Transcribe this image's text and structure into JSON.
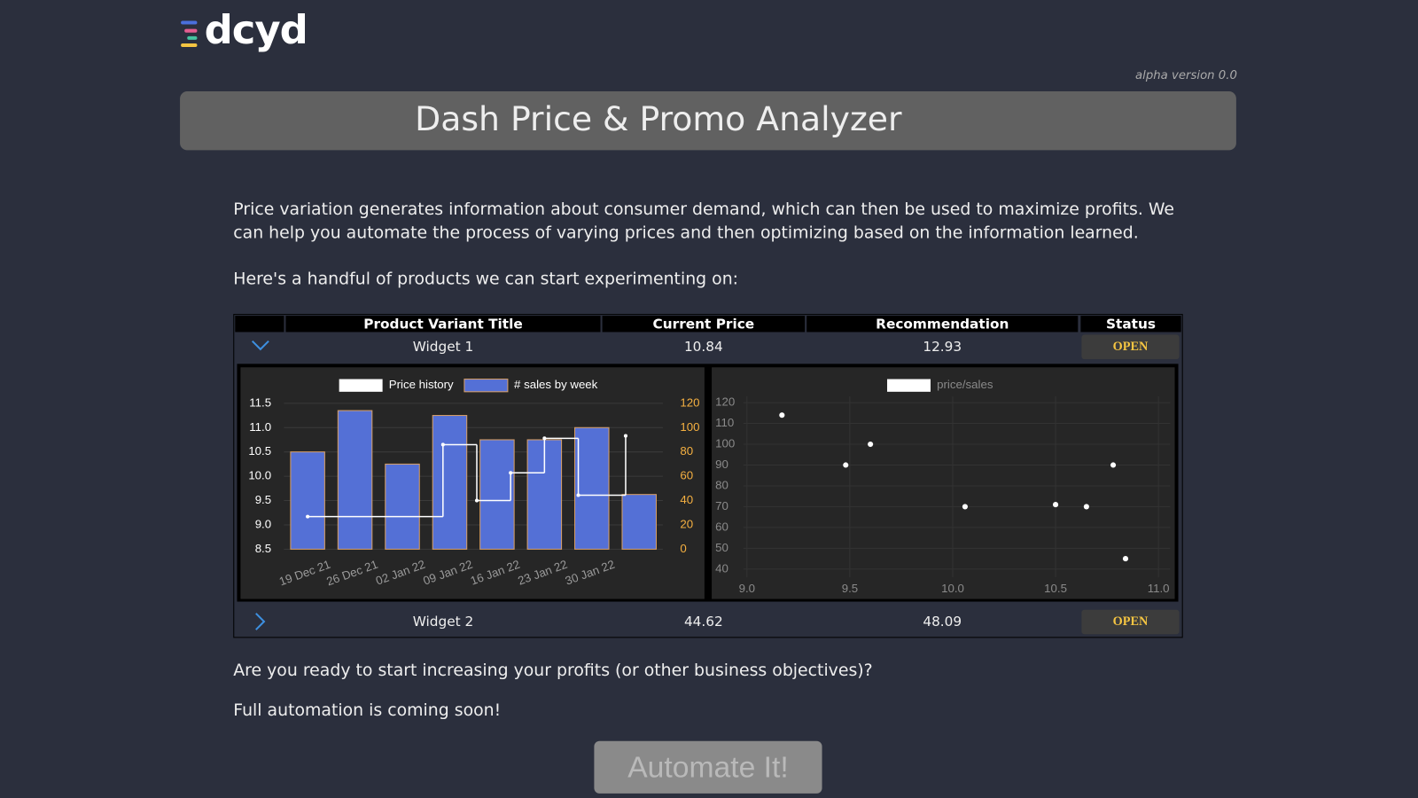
{
  "logo": {
    "text": "dcyd"
  },
  "version": "alpha version 0.0",
  "header": {
    "title": "Dash Price & Promo Analyzer"
  },
  "intro": [
    "Price variation generates information about consumer demand, which can then be used to maximize profits. We can help you automate the process of varying prices and then optimizing based on the information learned.",
    "Here's a handful of products we can start experimenting on:"
  ],
  "table": {
    "columns": [
      "Product Variant Title",
      "Current Price",
      "Recommendation",
      "Status"
    ],
    "rows": [
      {
        "title": "Widget 1",
        "current_price": 10.84,
        "recommendation": 12.93,
        "status": "OPEN"
      },
      {
        "title": "Widget 2",
        "current_price": 44.62,
        "recommendation": 48.09,
        "status": "OPEN"
      }
    ]
  },
  "chart_data": [
    {
      "type": "combo",
      "categories": [
        "19 Dec 21",
        "26 Dec 21",
        "02 Jan 22",
        "09 Jan 22",
        "16 Jan 22",
        "23 Jan 22",
        "30 Jan 22",
        null
      ],
      "series": [
        {
          "name": "Price history",
          "kind": "step",
          "color": "#ffffff",
          "x": [
            "2021-12-19",
            "2022-01-08",
            "2022-01-13",
            "2022-01-18",
            "2022-01-23",
            "2022-01-28",
            "2022-02-04"
          ],
          "values": [
            9.17,
            10.65,
            9.5,
            10.07,
            10.78,
            9.61,
            10.83
          ]
        },
        {
          "name": "# sales by week",
          "kind": "bar",
          "axis": "y2",
          "color": "#5470d6",
          "edge_color": "#d9a066",
          "values": [
            80,
            114,
            70,
            110,
            90,
            90,
            100,
            45
          ]
        }
      ],
      "ylim": [
        8.5,
        11.7
      ],
      "yticks": [
        8.5,
        {
          "value": 9,
          "label": "9.0"
        },
        9.5,
        {
          "value": 10,
          "label": "10.0"
        },
        10.5,
        {
          "value": 11,
          "label": "11.0"
        },
        11.5
      ],
      "y2lim": [
        0,
        128
      ],
      "y2ticks": [
        0,
        20,
        40,
        60,
        80,
        100,
        120
      ],
      "y2_color": "#f5b041",
      "grid": true,
      "legend": "top"
    },
    {
      "type": "scatter",
      "series": [
        {
          "name": "price/sales",
          "color": "#ffffff",
          "x": [
            9.17,
            9.48,
            9.6,
            10.06,
            10.5,
            10.65,
            10.78,
            10.84
          ],
          "values": [
            114,
            90,
            100,
            70,
            71,
            70,
            90,
            45
          ]
        }
      ],
      "xlim": [
        9,
        11
      ],
      "xticks": [
        {
          "value": 9,
          "label": "9.0"
        },
        9.5,
        {
          "value": 10,
          "label": "10.0"
        },
        10.5,
        {
          "value": 11,
          "label": "11.0"
        }
      ],
      "ylim": [
        40,
        120
      ],
      "yticks": [
        40,
        50,
        60,
        70,
        80,
        90,
        100,
        110,
        120
      ],
      "grid": true,
      "legend": "top"
    }
  ],
  "outro": [
    "Are you ready to start increasing your profits (or other business objectives)?",
    "Full automation is coming soon!"
  ],
  "button": "Automate It!"
}
